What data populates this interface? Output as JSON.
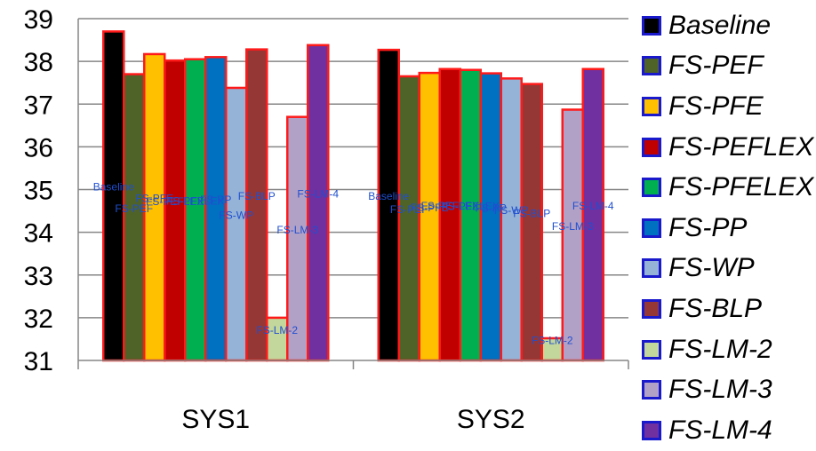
{
  "chart_data": {
    "type": "bar",
    "categories": [
      "SYS1",
      "SYS2"
    ],
    "ylim": [
      31,
      39
    ],
    "yticks": [
      31,
      32,
      33,
      34,
      35,
      36,
      37,
      38,
      39
    ],
    "grid": true,
    "legend_position": "right",
    "series": [
      {
        "name": "Baseline",
        "color": "#000000",
        "values": [
          38.7,
          38.27
        ]
      },
      {
        "name": "FS-PEF",
        "color": "#4f6228",
        "values": [
          37.7,
          37.65
        ]
      },
      {
        "name": "FS-PFE",
        "color": "#ffc000",
        "values": [
          38.17,
          37.73
        ]
      },
      {
        "name": "FS-PEFLEX",
        "color": "#c00000",
        "values": [
          38.02,
          37.82
        ]
      },
      {
        "name": "FS-PFELEX",
        "color": "#00b050",
        "values": [
          38.05,
          37.8
        ]
      },
      {
        "name": "FS-PP",
        "color": "#0070c0",
        "values": [
          38.1,
          37.72
        ]
      },
      {
        "name": "FS-WP",
        "color": "#95b3d7",
        "values": [
          37.38,
          37.6
        ]
      },
      {
        "name": "FS-BLP",
        "color": "#953735",
        "values": [
          38.28,
          37.47
        ]
      },
      {
        "name": "FS-LM-2",
        "color": "#c3d69b",
        "values": [
          32.0,
          31.52
        ]
      },
      {
        "name": "FS-LM-3",
        "color": "#b2a1c7",
        "values": [
          36.7,
          36.87
        ]
      },
      {
        "name": "FS-LM-4",
        "color": "#7030a0",
        "values": [
          38.38,
          37.82
        ]
      }
    ]
  }
}
